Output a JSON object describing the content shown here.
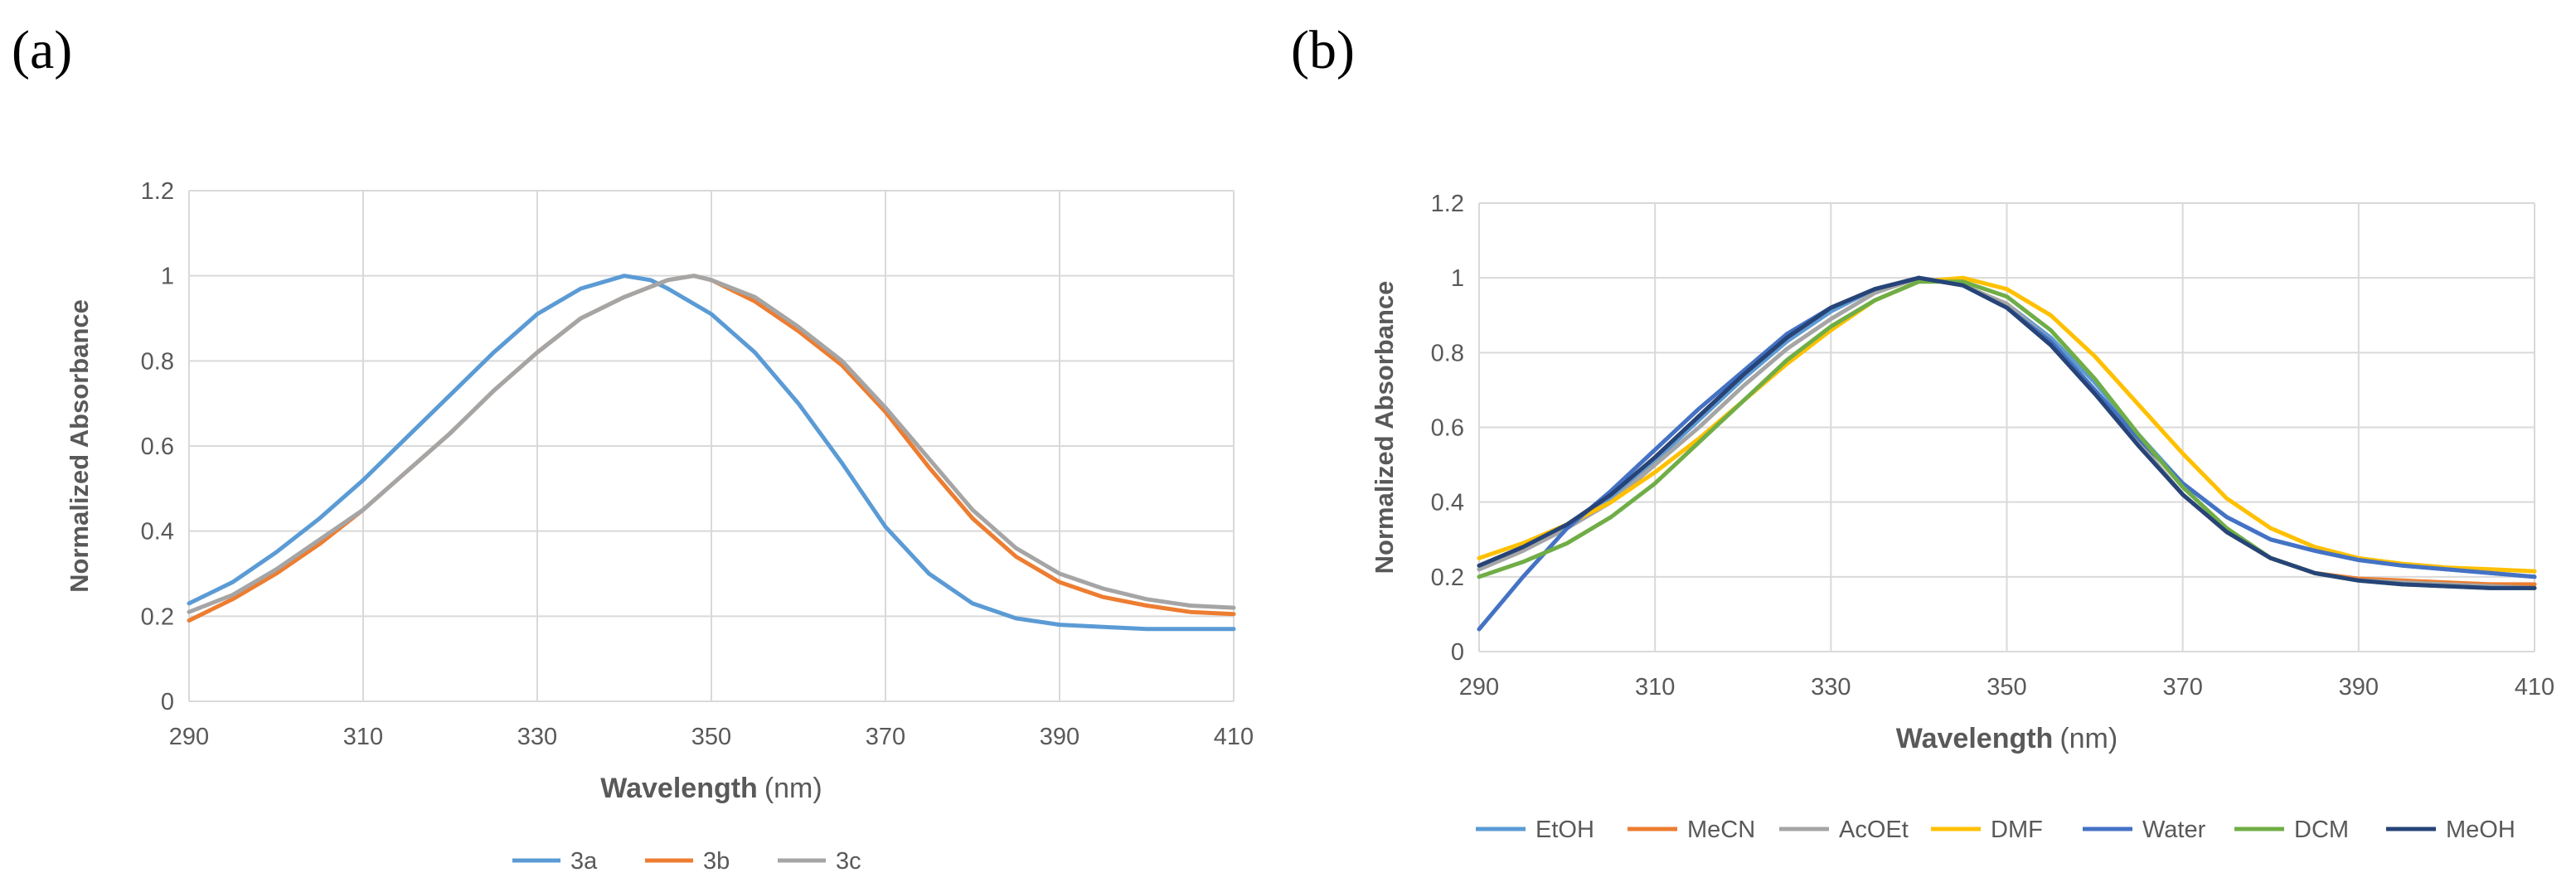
{
  "chart_data": [
    {
      "panel_label": "(a)",
      "type": "line",
      "title": "",
      "xlabel_bold": "Wavelength",
      "xlabel_unit": "(nm)",
      "ylabel": "Normalized Absorbance",
      "xlim": [
        290,
        410
      ],
      "ylim": [
        0,
        1.2
      ],
      "xticks": [
        "290",
        "310",
        "330",
        "350",
        "370",
        "390",
        "410"
      ],
      "yticks": [
        "0",
        "0.2",
        "0.4",
        "0.6",
        "0.8",
        "1",
        "1.2"
      ],
      "grid": true,
      "legend_position": "bottom",
      "series": [
        {
          "name": "3a",
          "color": "#5B9BD5",
          "x": [
            290,
            295,
            300,
            305,
            310,
            315,
            320,
            325,
            330,
            335,
            340,
            343,
            345,
            350,
            355,
            360,
            365,
            370,
            375,
            380,
            385,
            390,
            395,
            400,
            405,
            410
          ],
          "y": [
            0.23,
            0.28,
            0.35,
            0.43,
            0.52,
            0.62,
            0.72,
            0.82,
            0.91,
            0.97,
            1.0,
            0.99,
            0.97,
            0.91,
            0.82,
            0.7,
            0.56,
            0.41,
            0.3,
            0.23,
            0.195,
            0.18,
            0.175,
            0.17,
            0.17,
            0.17
          ]
        },
        {
          "name": "3b",
          "color": "#ED7D31",
          "x": [
            290,
            295,
            300,
            305,
            310,
            315,
            320,
            325,
            330,
            335,
            340,
            345,
            348,
            350,
            355,
            360,
            365,
            370,
            375,
            380,
            385,
            390,
            395,
            400,
            405,
            410
          ],
          "y": [
            0.19,
            0.24,
            0.3,
            0.37,
            0.45,
            0.54,
            0.63,
            0.73,
            0.82,
            0.9,
            0.95,
            0.99,
            1.0,
            0.99,
            0.94,
            0.87,
            0.79,
            0.68,
            0.55,
            0.43,
            0.34,
            0.28,
            0.245,
            0.225,
            0.21,
            0.205
          ]
        },
        {
          "name": "3c",
          "color": "#A5A5A5",
          "x": [
            290,
            295,
            300,
            305,
            310,
            315,
            320,
            325,
            330,
            335,
            340,
            345,
            348,
            350,
            355,
            360,
            365,
            370,
            375,
            380,
            385,
            390,
            395,
            400,
            405,
            410
          ],
          "y": [
            0.21,
            0.25,
            0.31,
            0.38,
            0.45,
            0.54,
            0.63,
            0.73,
            0.82,
            0.9,
            0.95,
            0.99,
            1.0,
            0.99,
            0.95,
            0.88,
            0.8,
            0.69,
            0.57,
            0.45,
            0.36,
            0.3,
            0.265,
            0.24,
            0.225,
            0.22
          ]
        }
      ]
    },
    {
      "panel_label": "(b)",
      "type": "line",
      "title": "",
      "xlabel_bold": "Wavelength",
      "xlabel_unit": "(nm)",
      "ylabel": "Normalized Absorbance",
      "xlim": [
        290,
        410
      ],
      "ylim": [
        0,
        1.2
      ],
      "xticks": [
        "290",
        "310",
        "330",
        "350",
        "370",
        "390",
        "410"
      ],
      "yticks": [
        "0",
        "0.2",
        "0.4",
        "0.6",
        "0.8",
        "1",
        "1.2"
      ],
      "grid": true,
      "legend_position": "bottom",
      "series": [
        {
          "name": "EtOH",
          "color": "#5B9BD5",
          "x": [
            290,
            295,
            300,
            305,
            310,
            315,
            320,
            325,
            330,
            335,
            340,
            345,
            350,
            355,
            360,
            365,
            370,
            375,
            380,
            385,
            390,
            395,
            400,
            405,
            410
          ],
          "y": [
            0.22,
            0.27,
            0.33,
            0.41,
            0.51,
            0.62,
            0.73,
            0.83,
            0.91,
            0.97,
            1.0,
            0.98,
            0.93,
            0.84,
            0.72,
            0.58,
            0.45,
            0.36,
            0.3,
            0.27,
            0.245,
            0.23,
            0.22,
            0.21,
            0.2
          ]
        },
        {
          "name": "MeCN",
          "color": "#ED7D31",
          "x": [
            290,
            295,
            300,
            305,
            310,
            315,
            320,
            325,
            330,
            335,
            340,
            345,
            350,
            355,
            360,
            365,
            370,
            375,
            380,
            385,
            390,
            395,
            400,
            405,
            410
          ],
          "y": [
            0.23,
            0.28,
            0.34,
            0.42,
            0.52,
            0.63,
            0.74,
            0.84,
            0.92,
            0.97,
            1.0,
            0.98,
            0.93,
            0.83,
            0.7,
            0.55,
            0.42,
            0.32,
            0.25,
            0.21,
            0.195,
            0.19,
            0.185,
            0.18,
            0.18
          ]
        },
        {
          "name": "AcOEt",
          "color": "#A5A5A5",
          "x": [
            290,
            295,
            300,
            305,
            310,
            315,
            320,
            325,
            330,
            335,
            340,
            345,
            350,
            355,
            360,
            365,
            370,
            375,
            380,
            385,
            390,
            395,
            400,
            405,
            410
          ],
          "y": [
            0.22,
            0.27,
            0.33,
            0.4,
            0.5,
            0.6,
            0.71,
            0.81,
            0.89,
            0.96,
            1.0,
            0.98,
            0.93,
            0.83,
            0.7,
            0.56,
            0.42,
            0.32,
            0.25,
            0.21,
            0.19,
            0.185,
            0.18,
            0.175,
            0.17
          ]
        },
        {
          "name": "DMF",
          "color": "#FFC000",
          "x": [
            290,
            295,
            300,
            305,
            310,
            315,
            320,
            325,
            330,
            335,
            340,
            345,
            350,
            355,
            360,
            365,
            370,
            375,
            380,
            385,
            390,
            395,
            400,
            405,
            410
          ],
          "y": [
            0.25,
            0.29,
            0.34,
            0.4,
            0.48,
            0.57,
            0.67,
            0.77,
            0.86,
            0.94,
            0.99,
            1.0,
            0.97,
            0.9,
            0.79,
            0.66,
            0.53,
            0.41,
            0.33,
            0.28,
            0.25,
            0.235,
            0.225,
            0.22,
            0.215
          ]
        },
        {
          "name": "Water",
          "color": "#4472C4",
          "x": [
            290,
            295,
            300,
            305,
            310,
            315,
            320,
            325,
            330,
            335,
            340,
            345,
            350,
            355,
            360,
            365,
            370,
            375,
            380,
            385,
            390,
            395,
            400,
            405,
            410
          ],
          "y": [
            0.06,
            0.2,
            0.33,
            0.43,
            0.54,
            0.65,
            0.75,
            0.85,
            0.92,
            0.97,
            1.0,
            0.98,
            0.92,
            0.83,
            0.7,
            0.57,
            0.45,
            0.36,
            0.3,
            0.27,
            0.245,
            0.23,
            0.22,
            0.21,
            0.2
          ]
        },
        {
          "name": "DCM",
          "color": "#70AD47",
          "x": [
            290,
            295,
            300,
            305,
            310,
            315,
            320,
            325,
            330,
            335,
            340,
            345,
            350,
            355,
            360,
            365,
            370,
            375,
            380,
            385,
            390,
            395,
            400,
            405,
            410
          ],
          "y": [
            0.2,
            0.24,
            0.29,
            0.36,
            0.45,
            0.56,
            0.67,
            0.78,
            0.87,
            0.94,
            0.99,
            0.99,
            0.95,
            0.86,
            0.73,
            0.58,
            0.44,
            0.33,
            0.25,
            0.21,
            0.19,
            0.18,
            0.175,
            0.17,
            0.17
          ]
        },
        {
          "name": "MeOH",
          "color": "#264478",
          "x": [
            290,
            295,
            300,
            305,
            310,
            315,
            320,
            325,
            330,
            335,
            340,
            345,
            350,
            355,
            360,
            365,
            370,
            375,
            380,
            385,
            390,
            395,
            400,
            405,
            410
          ],
          "y": [
            0.23,
            0.28,
            0.34,
            0.42,
            0.52,
            0.63,
            0.74,
            0.84,
            0.92,
            0.97,
            1.0,
            0.98,
            0.92,
            0.82,
            0.69,
            0.55,
            0.42,
            0.32,
            0.25,
            0.21,
            0.19,
            0.18,
            0.175,
            0.17,
            0.17
          ]
        }
      ]
    }
  ]
}
